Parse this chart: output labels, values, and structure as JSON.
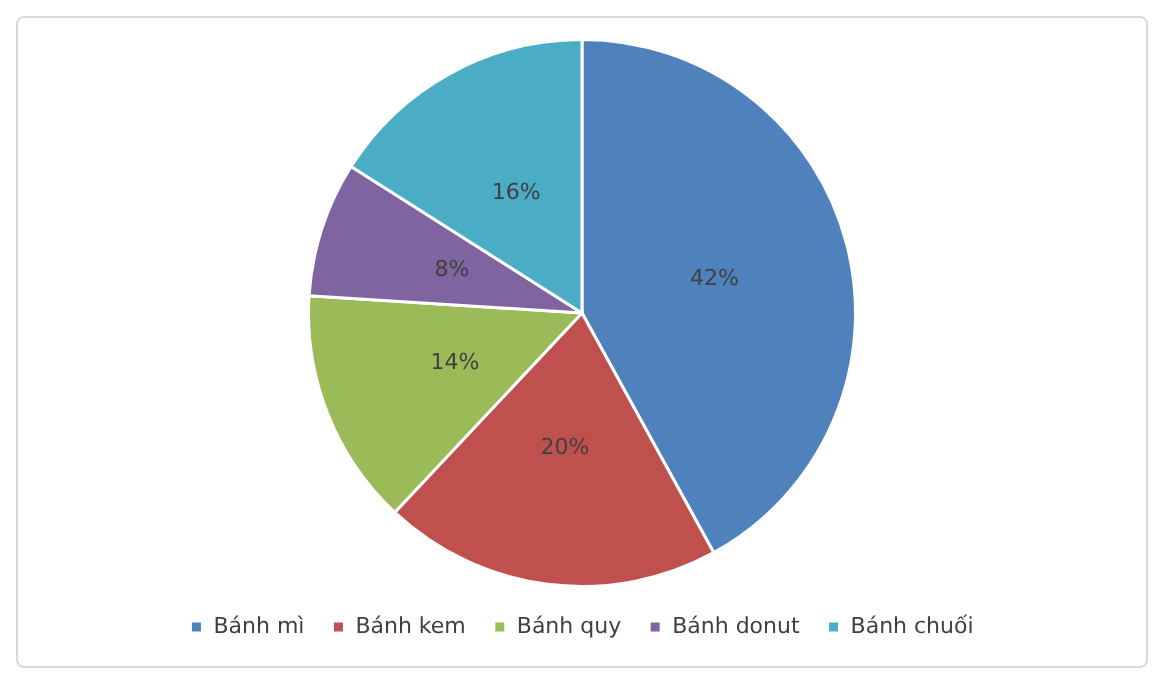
{
  "chart_data": {
    "type": "pie",
    "categories": [
      "Bánh mì",
      "Bánh kem",
      "Bánh quy",
      "Bánh donut",
      "Bánh chuối"
    ],
    "values": [
      42,
      20,
      14,
      8,
      16
    ],
    "colors": [
      "#4f81bd",
      "#c0504d",
      "#9bbb59",
      "#8064a2",
      "#4bacc6"
    ],
    "value_labels": [
      "42%",
      "20%",
      "14%",
      "8%",
      "16%"
    ],
    "legend": "bottom"
  }
}
